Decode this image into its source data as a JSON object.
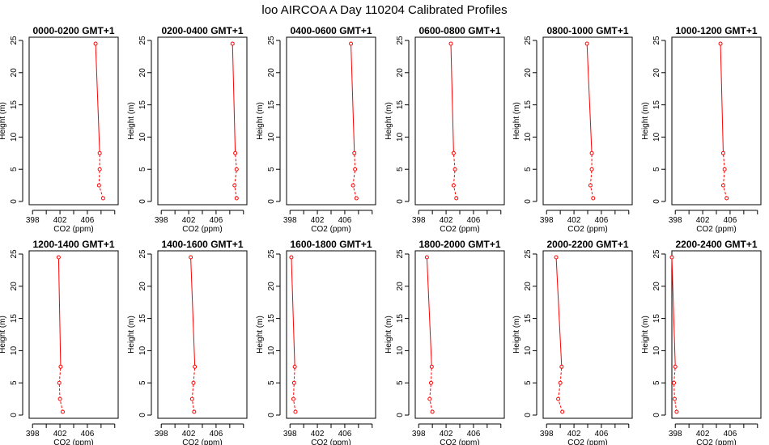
{
  "title": "loo AIRCOA A  Day 110204  Calibrated Profiles",
  "chart_data": {
    "type": "line",
    "xlabel": "CO2 (ppm)",
    "ylabel": "Height (m)",
    "xlim": [
      397.5,
      410.5
    ],
    "ylim": [
      -0.5,
      25.5
    ],
    "xticks": [
      398,
      402,
      406
    ],
    "yticks": [
      0,
      5,
      10,
      15,
      20,
      25
    ],
    "line_color": "#ff0000",
    "grid": false,
    "panels": [
      {
        "title": "0000-0200 GMT+1",
        "points": [
          {
            "x": 408.3,
            "y": 0.5
          },
          {
            "x": 407.7,
            "y": 2.5
          },
          {
            "x": 407.8,
            "y": 5.0
          },
          {
            "x": 407.8,
            "y": 7.5
          },
          {
            "x": 407.2,
            "y": 24.5
          }
        ]
      },
      {
        "title": "0200-0400 GMT+1",
        "points": [
          {
            "x": 409.0,
            "y": 0.5
          },
          {
            "x": 408.7,
            "y": 2.5
          },
          {
            "x": 409.0,
            "y": 5.0
          },
          {
            "x": 408.8,
            "y": 7.5
          },
          {
            "x": 408.4,
            "y": 24.5
          }
        ]
      },
      {
        "title": "0400-0600 GMT+1",
        "points": [
          {
            "x": 407.7,
            "y": 0.5
          },
          {
            "x": 407.2,
            "y": 2.5
          },
          {
            "x": 407.5,
            "y": 5.0
          },
          {
            "x": 407.4,
            "y": 7.5
          },
          {
            "x": 406.9,
            "y": 24.5
          }
        ]
      },
      {
        "title": "0600-0800 GMT+1",
        "points": [
          {
            "x": 403.5,
            "y": 0.5
          },
          {
            "x": 403.1,
            "y": 2.5
          },
          {
            "x": 403.3,
            "y": 5.0
          },
          {
            "x": 403.1,
            "y": 7.5
          },
          {
            "x": 402.7,
            "y": 24.5
          }
        ]
      },
      {
        "title": "0800-1000 GMT+1",
        "points": [
          {
            "x": 404.8,
            "y": 0.5
          },
          {
            "x": 404.4,
            "y": 2.5
          },
          {
            "x": 404.6,
            "y": 5.0
          },
          {
            "x": 404.6,
            "y": 7.5
          },
          {
            "x": 403.9,
            "y": 24.5
          }
        ]
      },
      {
        "title": "1000-1200 GMT+1",
        "points": [
          {
            "x": 405.5,
            "y": 0.5
          },
          {
            "x": 405.0,
            "y": 2.5
          },
          {
            "x": 405.2,
            "y": 5.0
          },
          {
            "x": 405.0,
            "y": 7.5
          },
          {
            "x": 404.6,
            "y": 24.5
          }
        ]
      },
      {
        "title": "1200-1400 GMT+1",
        "points": [
          {
            "x": 402.4,
            "y": 0.5
          },
          {
            "x": 402.0,
            "y": 2.5
          },
          {
            "x": 401.9,
            "y": 5.0
          },
          {
            "x": 402.1,
            "y": 7.5
          },
          {
            "x": 401.8,
            "y": 24.5
          }
        ]
      },
      {
        "title": "1400-1600 GMT+1",
        "points": [
          {
            "x": 402.8,
            "y": 0.5
          },
          {
            "x": 402.5,
            "y": 2.5
          },
          {
            "x": 402.7,
            "y": 5.0
          },
          {
            "x": 402.9,
            "y": 7.5
          },
          {
            "x": 402.3,
            "y": 24.5
          }
        ]
      },
      {
        "title": "1600-1800 GMT+1",
        "points": [
          {
            "x": 398.8,
            "y": 0.5
          },
          {
            "x": 398.5,
            "y": 2.5
          },
          {
            "x": 398.6,
            "y": 5.0
          },
          {
            "x": 398.7,
            "y": 7.5
          },
          {
            "x": 398.2,
            "y": 24.5
          }
        ]
      },
      {
        "title": "1800-2000 GMT+1",
        "points": [
          {
            "x": 400.0,
            "y": 0.5
          },
          {
            "x": 399.6,
            "y": 2.5
          },
          {
            "x": 399.8,
            "y": 5.0
          },
          {
            "x": 399.9,
            "y": 7.5
          },
          {
            "x": 399.2,
            "y": 24.5
          }
        ]
      },
      {
        "title": "2000-2200 GMT+1",
        "points": [
          {
            "x": 400.3,
            "y": 0.5
          },
          {
            "x": 399.7,
            "y": 2.5
          },
          {
            "x": 400.0,
            "y": 5.0
          },
          {
            "x": 400.2,
            "y": 7.5
          },
          {
            "x": 399.4,
            "y": 24.5
          }
        ]
      },
      {
        "title": "2200-2400 GMT+1",
        "points": [
          {
            "x": 398.2,
            "y": 0.5
          },
          {
            "x": 397.9,
            "y": 2.5
          },
          {
            "x": 397.8,
            "y": 5.0
          },
          {
            "x": 398.0,
            "y": 7.5
          },
          {
            "x": 397.5,
            "y": 24.5
          }
        ]
      }
    ]
  }
}
